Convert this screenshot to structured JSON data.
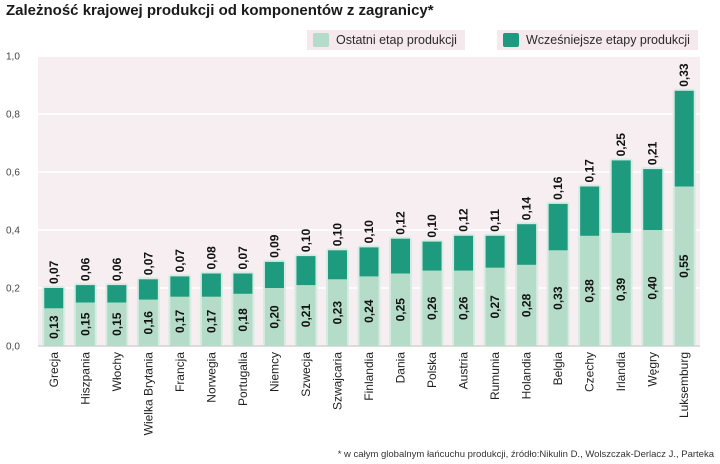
{
  "title": "Zależność krajowej produkcji od komponentów  z zagranicy*",
  "legend": [
    {
      "label": "Ostatni etap produkcji",
      "color": "#b5dcc8"
    },
    {
      "label": "Wcześniejsze etapy produkcji",
      "color": "#1e9a7f"
    }
  ],
  "footnote": "* w całym globalnym łańcuchu produkcji, źródło:Nikulin D., Wolszczak-Derlacz J., Parteka",
  "chart_data": {
    "type": "bar",
    "stacked": true,
    "categories": [
      "Grecja",
      "Hiszpania",
      "Włochy",
      "Wielka Brytania",
      "Francja",
      "Norwegia",
      "Portugalia",
      "Niemcy",
      "Szwecja",
      "Szwajcaria",
      "Finlandia",
      "Dania",
      "Polska",
      "Austria",
      "Rumunia",
      "Holandia",
      "Belgia",
      "Czechy",
      "Irlandia",
      "Węgry",
      "Luksemburg"
    ],
    "series": [
      {
        "name": "Ostatni etap produkcji",
        "values": [
          0.13,
          0.15,
          0.15,
          0.16,
          0.17,
          0.17,
          0.18,
          0.2,
          0.21,
          0.23,
          0.24,
          0.25,
          0.26,
          0.26,
          0.27,
          0.28,
          0.33,
          0.38,
          0.39,
          0.4,
          0.55
        ],
        "labels": [
          "0,13",
          "0,15",
          "0,15",
          "0,16",
          "0,17",
          "0,17",
          "0,18",
          "0,20",
          "0,21",
          "0,23",
          "0,24",
          "0,25",
          "0,26",
          "0,26",
          "0,27",
          "0,28",
          "0,33",
          "0,38",
          "0,39",
          "0,40",
          "0,55"
        ]
      },
      {
        "name": "Wcześniejsze etapy produkcji",
        "values": [
          0.07,
          0.06,
          0.06,
          0.07,
          0.07,
          0.08,
          0.07,
          0.09,
          0.1,
          0.1,
          0.1,
          0.12,
          0.1,
          0.12,
          0.11,
          0.14,
          0.16,
          0.17,
          0.25,
          0.21,
          0.33
        ],
        "labels": [
          "0,07",
          "0,06",
          "0,06",
          "0,07",
          "0,07",
          "0,08",
          "0,07",
          "0,09",
          "0,10",
          "0,10",
          "0,10",
          "0,12",
          "0,10",
          "0,12",
          "0,11",
          "0,14",
          "0,16",
          "0,17",
          "0,25",
          "0,21",
          "0,33"
        ]
      }
    ],
    "yticks": [
      "0,0",
      "0,2",
      "0,4",
      "0,6",
      "0,8",
      "1,0"
    ],
    "ylim": [
      0,
      1.0
    ],
    "grid": true,
    "legend_position": "top-right"
  }
}
